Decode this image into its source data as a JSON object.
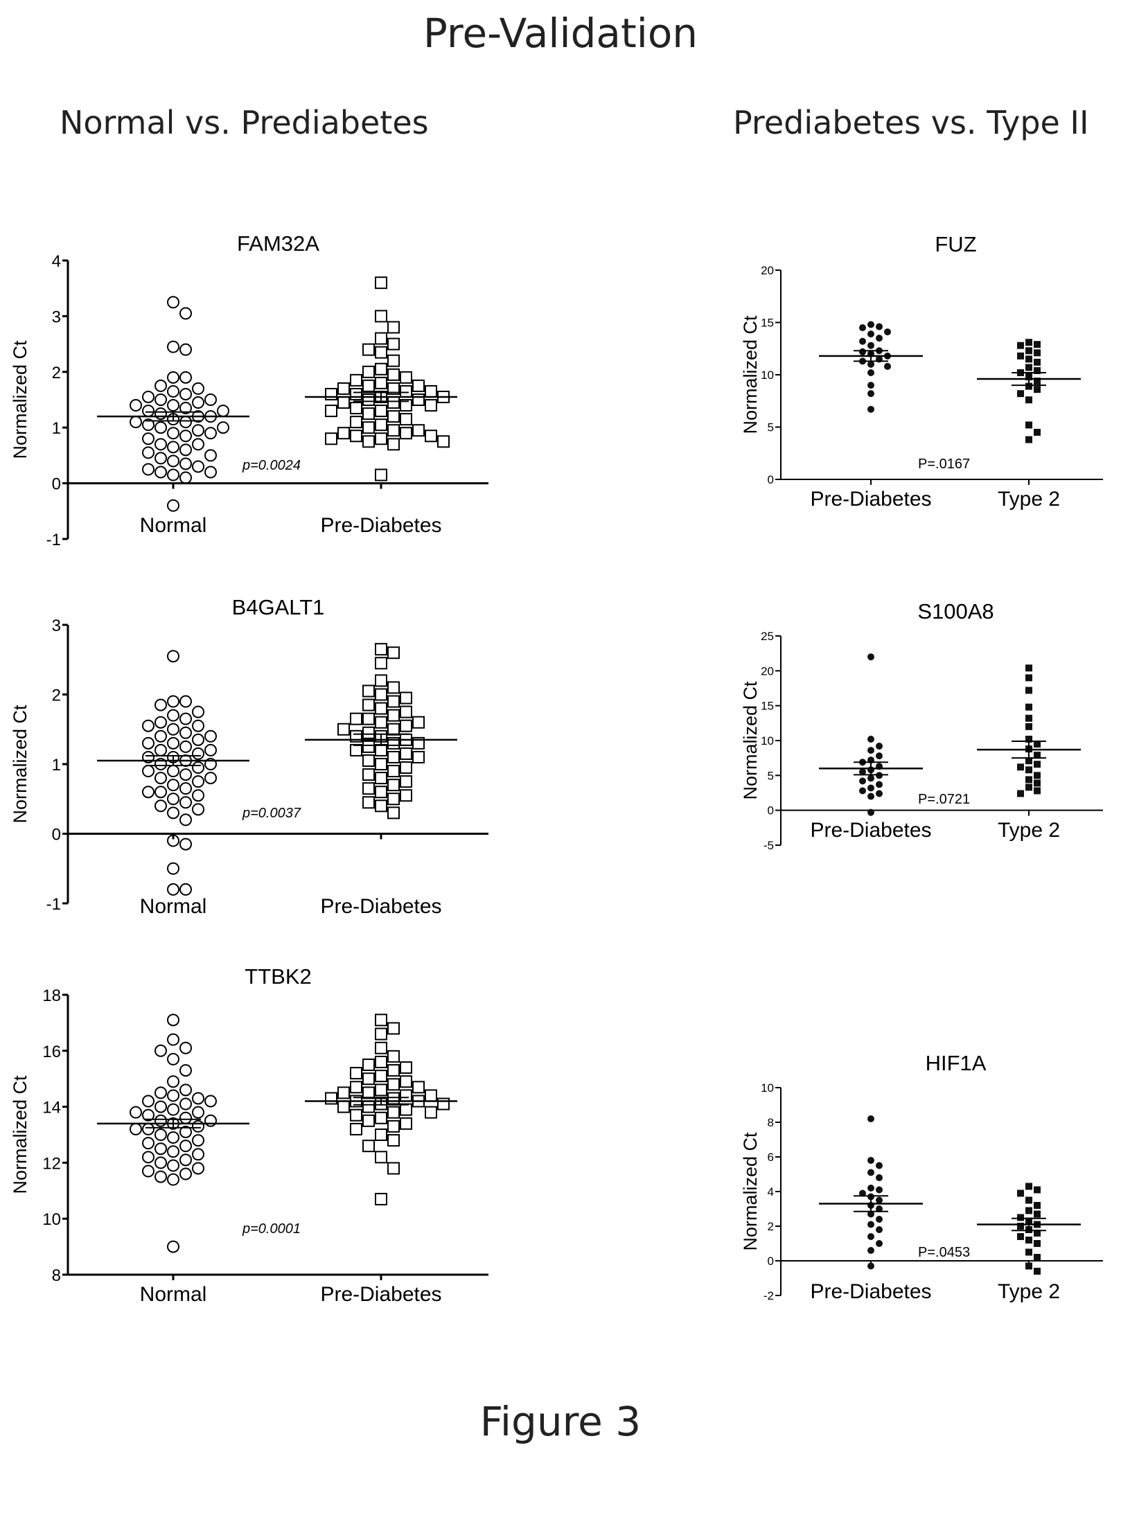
{
  "title": "Pre-Validation",
  "left_heading": "Normal vs. Prediabetes",
  "right_heading": "Prediabetes vs. Type II",
  "caption": "Figure 3",
  "chart_data": [
    {
      "id": "fam32a",
      "type": "scatter",
      "title": "FAM32A",
      "ylabel": "Normalized Ct",
      "ylim": [
        -1,
        4
      ],
      "yticks": [
        -1,
        0,
        1,
        2,
        3,
        4
      ],
      "categories": [
        "Normal",
        "Pre-Diabetes"
      ],
      "p_value": "p=0.0024",
      "marker": "open-circle",
      "zero_line": true,
      "series": [
        {
          "name": "Normal",
          "mean": 1.2,
          "sem": 0.08,
          "values": [
            3.25,
            3.05,
            2.45,
            2.4,
            1.9,
            1.9,
            1.75,
            1.7,
            1.65,
            1.6,
            1.55,
            1.5,
            1.5,
            1.45,
            1.4,
            1.4,
            1.35,
            1.3,
            1.3,
            1.25,
            1.2,
            1.2,
            1.15,
            1.1,
            1.1,
            1.05,
            1.0,
            1.0,
            0.95,
            0.9,
            0.9,
            0.85,
            0.8,
            0.7,
            0.7,
            0.65,
            0.6,
            0.55,
            0.5,
            0.45,
            0.4,
            0.35,
            0.3,
            0.25,
            0.2,
            0.2,
            0.15,
            0.1,
            -0.4
          ]
        },
        {
          "name": "Pre-Diabetes",
          "mean": 1.55,
          "sem": 0.08,
          "values": [
            3.6,
            3.0,
            2.8,
            2.6,
            2.5,
            2.4,
            2.35,
            2.2,
            2.05,
            2.0,
            1.95,
            1.9,
            1.85,
            1.8,
            1.75,
            1.75,
            1.7,
            1.7,
            1.65,
            1.65,
            1.6,
            1.6,
            1.55,
            1.55,
            1.5,
            1.5,
            1.45,
            1.45,
            1.4,
            1.4,
            1.35,
            1.3,
            1.3,
            1.25,
            1.2,
            1.15,
            1.1,
            1.05,
            1.0,
            0.95,
            0.95,
            0.9,
            0.9,
            0.85,
            0.85,
            0.8,
            0.8,
            0.75,
            0.75,
            0.7,
            0.15
          ]
        }
      ]
    },
    {
      "id": "b4galt1",
      "type": "scatter",
      "title": "B4GALT1",
      "ylabel": "Normalized Ct",
      "ylim": [
        -1,
        3
      ],
      "yticks": [
        -1,
        0,
        1,
        2,
        3
      ],
      "categories": [
        "Normal",
        "Pre-Diabetes"
      ],
      "p_value": "p=0.0037",
      "marker": "open-circle-square",
      "zero_line": true,
      "series": [
        {
          "name": "Normal",
          "mean": 1.05,
          "sem": 0.07,
          "values": [
            2.55,
            1.9,
            1.9,
            1.85,
            1.75,
            1.7,
            1.65,
            1.6,
            1.55,
            1.55,
            1.5,
            1.45,
            1.4,
            1.4,
            1.35,
            1.3,
            1.3,
            1.25,
            1.2,
            1.2,
            1.15,
            1.1,
            1.1,
            1.05,
            1.0,
            1.0,
            0.95,
            0.9,
            0.9,
            0.85,
            0.8,
            0.8,
            0.75,
            0.7,
            0.65,
            0.6,
            0.6,
            0.55,
            0.5,
            0.45,
            0.4,
            0.35,
            0.3,
            0.2,
            -0.1,
            -0.15,
            -0.5,
            -0.8,
            -0.8
          ]
        },
        {
          "name": "Pre-Diabetes",
          "mean": 1.35,
          "sem": 0.08,
          "values": [
            2.65,
            2.6,
            2.45,
            2.2,
            2.1,
            2.05,
            2.0,
            1.95,
            1.9,
            1.85,
            1.8,
            1.75,
            1.7,
            1.65,
            1.65,
            1.6,
            1.6,
            1.55,
            1.5,
            1.5,
            1.45,
            1.4,
            1.4,
            1.35,
            1.3,
            1.3,
            1.25,
            1.2,
            1.2,
            1.15,
            1.1,
            1.1,
            1.05,
            1.0,
            0.95,
            0.9,
            0.85,
            0.8,
            0.75,
            0.7,
            0.65,
            0.6,
            0.55,
            0.5,
            0.45,
            0.4,
            0.3
          ]
        }
      ]
    },
    {
      "id": "ttbk2",
      "type": "scatter",
      "title": "TTBK2",
      "ylabel": "Normalized Ct",
      "ylim": [
        8,
        18
      ],
      "yticks": [
        8,
        10,
        12,
        14,
        16,
        18
      ],
      "categories": [
        "Normal",
        "Pre-Diabetes"
      ],
      "p_value": "p=0.0001",
      "marker": "open-circle-square",
      "zero_line": false,
      "series": [
        {
          "name": "Normal",
          "mean": 13.4,
          "sem": 0.15,
          "values": [
            17.1,
            16.4,
            16.1,
            16.0,
            15.7,
            15.3,
            14.9,
            14.6,
            14.5,
            14.4,
            14.3,
            14.2,
            14.2,
            14.1,
            14.0,
            13.9,
            13.8,
            13.8,
            13.7,
            13.6,
            13.5,
            13.5,
            13.4,
            13.3,
            13.2,
            13.2,
            13.1,
            13.0,
            12.9,
            12.8,
            12.7,
            12.6,
            12.5,
            12.4,
            12.3,
            12.2,
            12.1,
            12.0,
            11.9,
            11.8,
            11.7,
            11.6,
            11.5,
            11.4,
            9.0
          ]
        },
        {
          "name": "Pre-Diabetes",
          "mean": 14.2,
          "sem": 0.13,
          "values": [
            17.1,
            16.8,
            16.6,
            16.1,
            15.8,
            15.6,
            15.5,
            15.4,
            15.3,
            15.2,
            15.1,
            15.0,
            14.9,
            14.8,
            14.7,
            14.7,
            14.6,
            14.5,
            14.5,
            14.4,
            14.4,
            14.3,
            14.3,
            14.2,
            14.2,
            14.1,
            14.1,
            14.0,
            14.0,
            13.9,
            13.8,
            13.8,
            13.7,
            13.6,
            13.5,
            13.4,
            13.3,
            13.2,
            13.0,
            12.8,
            12.6,
            12.2,
            11.8,
            10.7
          ]
        }
      ]
    },
    {
      "id": "fuz",
      "type": "scatter",
      "title": "FUZ",
      "ylabel": "Normalized Ct",
      "ylim": [
        0,
        20
      ],
      "yticks": [
        0,
        5,
        10,
        15,
        20
      ],
      "categories": [
        "Pre-Diabetes",
        "Type 2"
      ],
      "p_value": "P=.0167",
      "marker": "filled",
      "zero_line": false,
      "series": [
        {
          "name": "Pre-Diabetes",
          "mean": 11.8,
          "sem": 0.5,
          "values": [
            14.8,
            14.6,
            14.5,
            14.1,
            13.9,
            13.5,
            13.2,
            12.8,
            12.3,
            12.2,
            12.0,
            11.8,
            11.5,
            11.3,
            11.0,
            10.8,
            10.2,
            9.0,
            8.2,
            6.7
          ]
        },
        {
          "name": "Type 2",
          "mean": 9.6,
          "sem": 0.6,
          "values": [
            13.1,
            12.9,
            12.8,
            12.3,
            12.1,
            11.8,
            11.5,
            11.2,
            10.7,
            10.4,
            10.2,
            9.8,
            9.4,
            8.9,
            8.6,
            8.2,
            7.6,
            5.2,
            4.5,
            3.8
          ]
        }
      ]
    },
    {
      "id": "s100a8",
      "type": "scatter",
      "title": "S100A8",
      "ylabel": "Normalized Ct",
      "ylim": [
        -5,
        25
      ],
      "yticks": [
        -5,
        0,
        5,
        10,
        15,
        20,
        25
      ],
      "categories": [
        "Pre-Diabetes",
        "Type 2"
      ],
      "p_value": "P=.0721",
      "marker": "filled",
      "zero_line": true,
      "series": [
        {
          "name": "Pre-Diabetes",
          "mean": 6.0,
          "sem": 0.9,
          "values": [
            22.0,
            10.2,
            9.2,
            8.6,
            7.8,
            7.2,
            6.9,
            6.3,
            5.8,
            5.5,
            5.0,
            4.6,
            4.2,
            3.7,
            3.2,
            2.8,
            2.4,
            2.0,
            -0.3
          ]
        },
        {
          "name": "Type 2",
          "mean": 8.7,
          "sem": 1.2,
          "values": [
            20.4,
            19.0,
            17.2,
            14.8,
            13.2,
            12.0,
            10.2,
            9.5,
            8.8,
            7.9,
            7.1,
            6.6,
            6.2,
            5.8,
            5.0,
            4.4,
            3.9,
            3.3,
            2.8,
            2.4
          ]
        }
      ]
    },
    {
      "id": "hif1a",
      "type": "scatter",
      "title": "HIF1A",
      "ylabel": "Normalized Ct",
      "ylim": [
        -2,
        10
      ],
      "yticks": [
        -2,
        0,
        2,
        4,
        6,
        8,
        10
      ],
      "categories": [
        "Pre-Diabetes",
        "Type 2"
      ],
      "p_value": "P=.0453",
      "marker": "filled",
      "zero_line": true,
      "series": [
        {
          "name": "Pre-Diabetes",
          "mean": 3.3,
          "sem": 0.45,
          "values": [
            8.2,
            5.8,
            5.5,
            5.1,
            4.8,
            4.2,
            4.1,
            3.9,
            3.7,
            3.5,
            3.2,
            3.0,
            2.7,
            2.4,
            2.1,
            1.8,
            1.4,
            1.0,
            0.6,
            -0.3
          ]
        },
        {
          "name": "Type 2",
          "mean": 2.1,
          "sem": 0.35,
          "values": [
            4.3,
            4.1,
            3.9,
            3.5,
            3.2,
            2.9,
            2.7,
            2.5,
            2.3,
            2.1,
            2.0,
            1.8,
            1.6,
            1.4,
            1.2,
            1.0,
            0.5,
            0.2,
            -0.3,
            -0.6
          ]
        }
      ]
    }
  ]
}
